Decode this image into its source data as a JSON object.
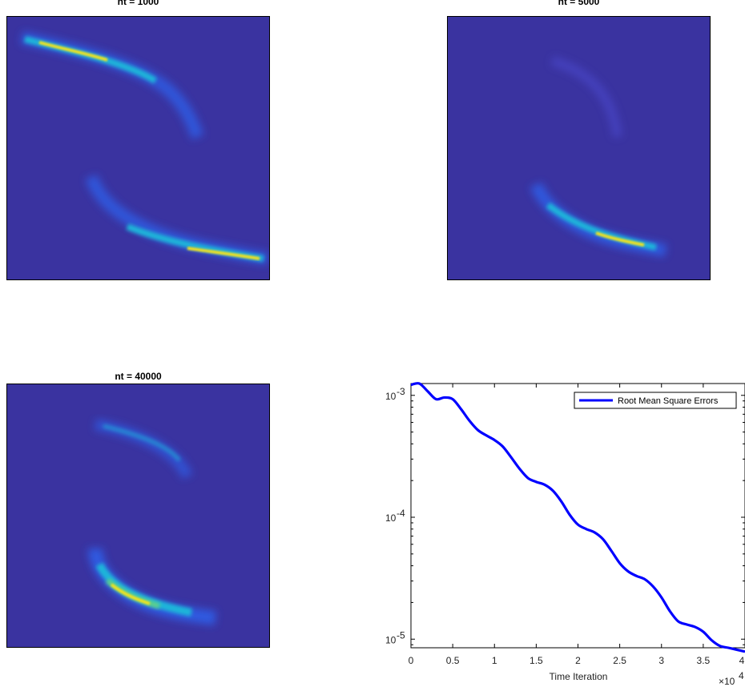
{
  "colors": {
    "background_blue": "#3a33a0",
    "colormap": [
      "#3a33a0",
      "#2f5fe8",
      "#1fb5d9",
      "#5fd08a",
      "#f5e21a"
    ],
    "line": "#0000ff"
  },
  "chart_data": [
    {
      "type": "heatmap",
      "title": "nt = 1000",
      "grid": false,
      "colormap": "parula",
      "description_bands": "two bright bands: upper-left arc and lower-right arc"
    },
    {
      "type": "heatmap",
      "title": "nt = 5000",
      "grid": false,
      "colormap": "parula"
    },
    {
      "type": "heatmap",
      "title": "nt = 40000",
      "grid": false,
      "colormap": "parula"
    },
    {
      "type": "line",
      "title": "",
      "xlabel": "Time Iteration",
      "ylabel": "",
      "x_multiplier": "×10^4",
      "yscale": "log",
      "xlim": [
        0,
        40000
      ],
      "ylim": [
        8.5e-06,
        0.00125
      ],
      "xticks": [
        0,
        5000,
        10000,
        15000,
        20000,
        25000,
        30000,
        35000,
        40000
      ],
      "xtick_labels": [
        "0",
        "0.5",
        "1",
        "1.5",
        "2",
        "2.5",
        "3",
        "3.5",
        "4"
      ],
      "yticks": [
        1e-05,
        0.0001,
        0.001
      ],
      "ytick_labels": [
        [
          "10",
          "-5"
        ],
        [
          "10",
          "-4"
        ],
        [
          "10",
          "-3"
        ]
      ],
      "legend": "top-right",
      "series": [
        {
          "name": "Root Mean Square Errors",
          "x": [
            0,
            1000,
            2000,
            3000,
            4000,
            5000,
            6000,
            7000,
            8000,
            9000,
            10000,
            11000,
            12000,
            13000,
            14000,
            15000,
            16000,
            17000,
            18000,
            19000,
            20000,
            21000,
            22000,
            23000,
            24000,
            25000,
            26000,
            27000,
            28000,
            29000,
            30000,
            31000,
            32000,
            33000,
            34000,
            35000,
            36000,
            37000,
            38000,
            39000,
            40000
          ],
          "values": [
            0.00122,
            0.00125,
            0.00108,
            0.00093,
            0.00096,
            0.00093,
            0.00077,
            0.00062,
            0.00052,
            0.00047,
            0.00043,
            0.00038,
            0.00031,
            0.00025,
            0.00021,
            0.000195,
            0.000185,
            0.000165,
            0.000135,
            0.000105,
            8.7e-05,
            8e-05,
            7.5e-05,
            6.6e-05,
            5.3e-05,
            4.2e-05,
            3.6e-05,
            3.3e-05,
            3.1e-05,
            2.7e-05,
            2.2e-05,
            1.7e-05,
            1.4e-05,
            1.32e-05,
            1.26e-05,
            1.15e-05,
            9.8e-06,
            8.8e-06,
            8.5e-06,
            8.2e-06,
            7.9e-06
          ]
        }
      ]
    }
  ]
}
